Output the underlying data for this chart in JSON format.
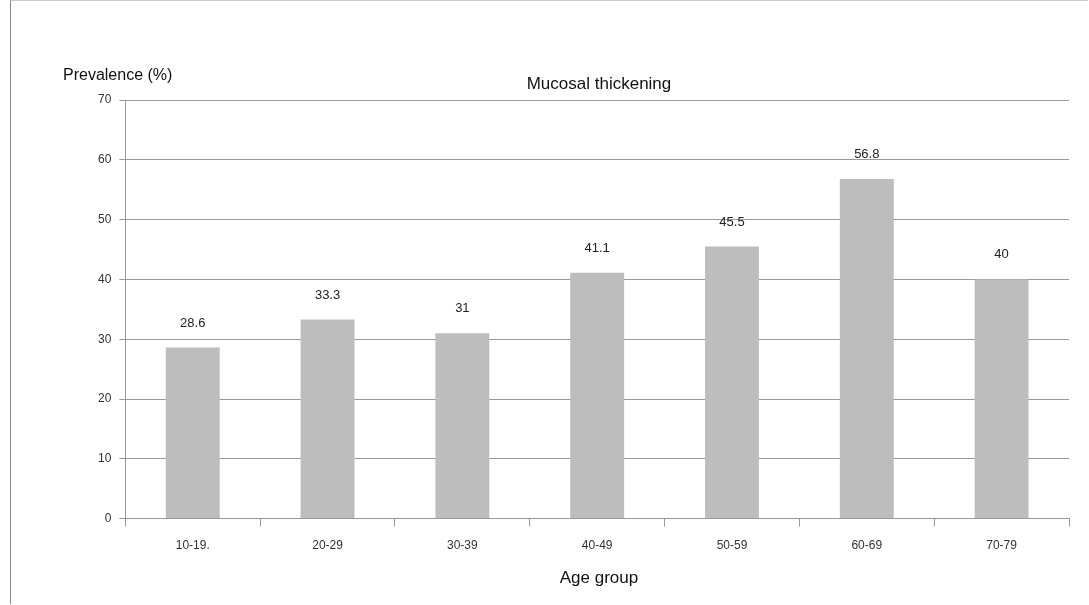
{
  "chart_data": {
    "type": "bar",
    "title": "Mucosal thickening",
    "xlabel": "Age group",
    "ylabel": "Prevalence (%)",
    "categories": [
      "10-19.",
      "20-29",
      "30-39",
      "40-49",
      "50-59",
      "60-69",
      "70-79"
    ],
    "values": [
      28.6,
      33.3,
      31,
      41.1,
      45.5,
      56.8,
      40
    ],
    "color": "#bdbdbd",
    "ylim": [
      0,
      70
    ],
    "yticks": [
      0,
      10,
      20,
      30,
      40,
      50,
      60,
      70
    ],
    "grid": "y",
    "data_labels": true
  }
}
